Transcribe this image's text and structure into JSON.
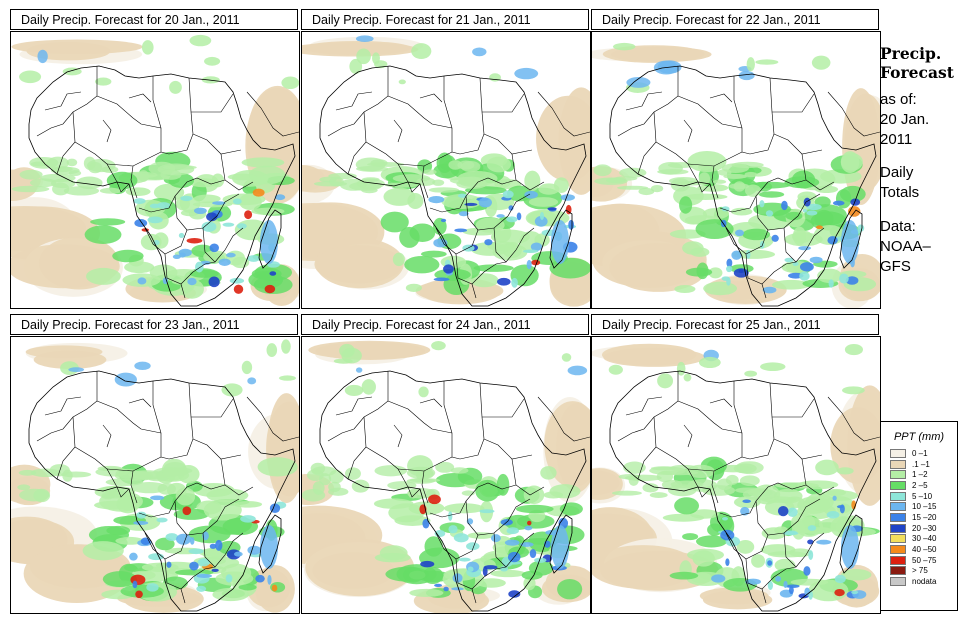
{
  "panels": [
    {
      "title": "Daily Precip. Forecast for  20 Jan., 2011",
      "seed": 11
    },
    {
      "title": "Daily Precip. Forecast for  21 Jan., 2011",
      "seed": 23
    },
    {
      "title": "Daily Precip. Forecast for  22 Jan., 2011",
      "seed": 37
    },
    {
      "title": "Daily Precip. Forecast for  23 Jan., 2011",
      "seed": 41
    },
    {
      "title": "Daily Precip. Forecast for  24 Jan., 2011",
      "seed": 53
    },
    {
      "title": "Daily Precip. Forecast for  25 Jan., 2011",
      "seed": 67
    }
  ],
  "sidebar": {
    "title_line1": "Precip.",
    "title_line2": "Forecast",
    "asof_line1": "as of:",
    "asof_line2": "20 Jan.",
    "asof_line3": "2011",
    "totals_line1": "Daily",
    "totals_line2": "Totals",
    "data_line1": "Data:",
    "data_line2": "NOAA–",
    "data_line3": "GFS"
  },
  "legend": {
    "title": "PPT (mm)",
    "items": [
      {
        "label": "0 –1",
        "color": "#f5f0e6"
      },
      {
        "label": ".1 –1",
        "color": "#ead7b7"
      },
      {
        "label": "1 –2",
        "color": "#b4eea6"
      },
      {
        "label": "2 –5",
        "color": "#66dd66"
      },
      {
        "label": "5 –10",
        "color": "#8ee6d9"
      },
      {
        "label": "10 –15",
        "color": "#6cb6f0"
      },
      {
        "label": "15 –20",
        "color": "#3b82e8"
      },
      {
        "label": "20 –30",
        "color": "#1f44c8"
      },
      {
        "label": "30 –40",
        "color": "#f2de5c"
      },
      {
        "label": "40 –50",
        "color": "#f48a1c"
      },
      {
        "label": "50 –75",
        "color": "#dd2010"
      },
      {
        "label": "> 75",
        "color": "#8a1a10"
      },
      {
        "label": "nodata",
        "color": "#c8c8c8"
      }
    ]
  }
}
